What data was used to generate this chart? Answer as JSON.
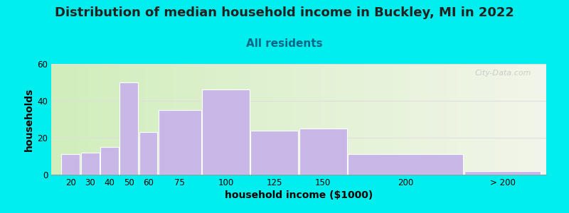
{
  "title": "Distribution of median household income in Buckley, MI in 2022",
  "subtitle": "All residents",
  "xlabel": "household income ($1000)",
  "ylabel": "households",
  "bar_labels": [
    "20",
    "30",
    "40",
    "50",
    "60",
    "75",
    "100",
    "125",
    "150",
    "200",
    "> 200"
  ],
  "bar_values": [
    11,
    12,
    15,
    50,
    23,
    35,
    46,
    24,
    25,
    11,
    2
  ],
  "bar_widths": [
    1,
    1,
    1,
    1,
    1,
    1.5,
    1.5,
    1.5,
    1.5,
    1.5,
    1.5
  ],
  "bar_centers": [
    20,
    30,
    40,
    50,
    60,
    75,
    100,
    125,
    150,
    200,
    240
  ],
  "bar_color": "#c8b8e8",
  "bar_edgecolor": "#ffffff",
  "ylim": [
    0,
    60
  ],
  "yticks": [
    0,
    20,
    40,
    60
  ],
  "background_color": "#00eeee",
  "plot_bg_color_left": "#d0edbb",
  "plot_bg_color_right": "#f2f5ea",
  "title_fontsize": 13,
  "subtitle_fontsize": 11,
  "subtitle_color": "#006688",
  "axis_label_fontsize": 10,
  "watermark": "City-Data.com"
}
